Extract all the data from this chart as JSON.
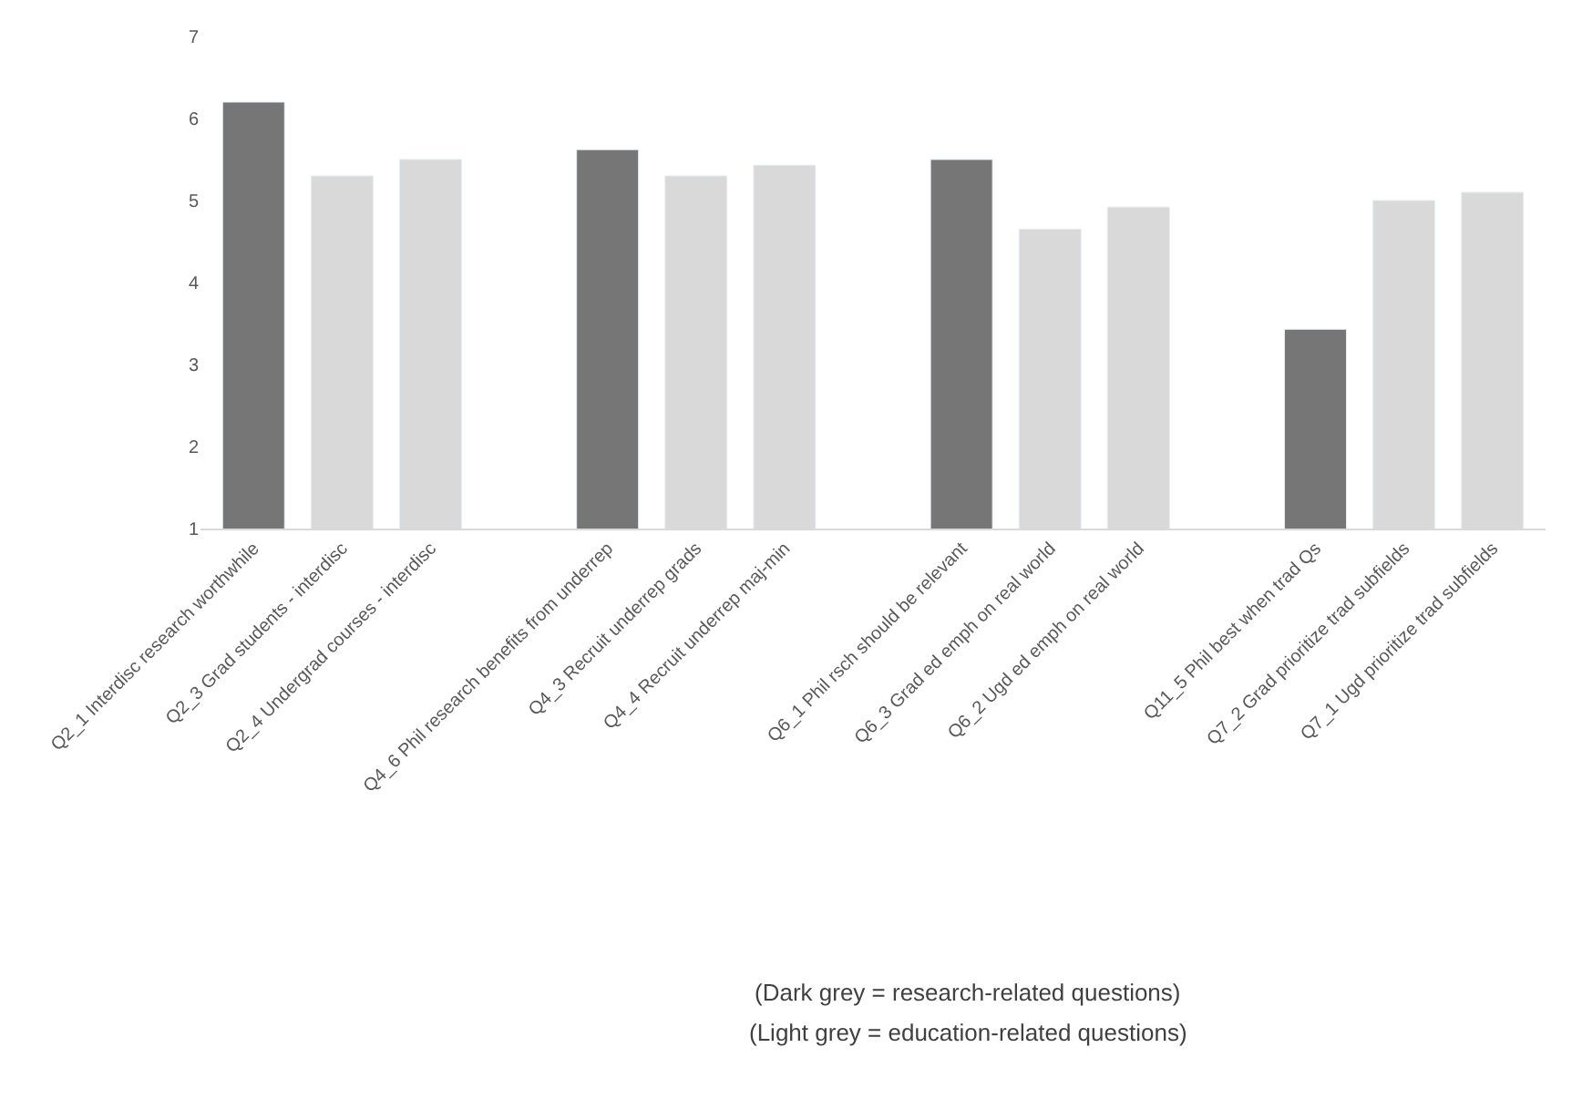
{
  "chart_data": {
    "type": "bar",
    "categories": [
      "Q2_1 Interdisc research worthwhile",
      "Q2_3 Grad students - interdisc",
      "Q2_4 Undergrad courses - interdisc",
      null,
      "Q4_6 Phil research benefits from underrep",
      "Q4_3 Recruit underrep grads",
      "Q4_4 Recruit underrep maj-min",
      null,
      "Q6_1 Phil rsch should be relevant",
      "Q6_3 Grad ed emph on real world",
      "Q6_2 Ugd ed emph on real world",
      null,
      "Q11_5 Phil best when trad Qs",
      "Q7_2 Grad prioritize trad subfields",
      "Q7_1 Ugd prioritize trad subfields"
    ],
    "values": [
      6.2,
      5.3,
      5.5,
      null,
      5.62,
      5.3,
      5.43,
      null,
      5.5,
      4.65,
      4.92,
      null,
      3.43,
      5.0,
      5.1
    ],
    "colors": [
      "#767676",
      "#d9d9d9",
      "#d9d9d9",
      null,
      "#767676",
      "#d9d9d9",
      "#d9d9d9",
      null,
      "#767676",
      "#d9d9d9",
      "#d9d9d9",
      null,
      "#767676",
      "#d9d9d9",
      "#d9d9d9"
    ],
    "ylim": [
      1,
      7
    ],
    "yticks": [
      1,
      2,
      3,
      4,
      5,
      6,
      7
    ],
    "annotations": [
      "(Dark grey = research-related questions)",
      "(Light grey = education-related questions)"
    ]
  }
}
